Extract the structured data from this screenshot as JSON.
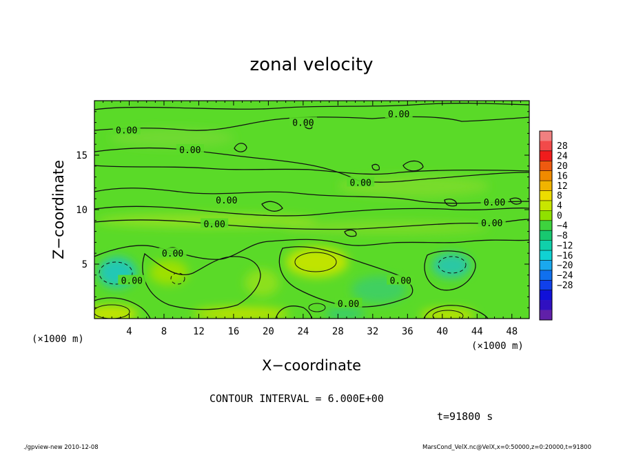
{
  "chart_data": {
    "type": "heatmap",
    "title": "zonal velocity",
    "xlabel": "X−coordinate",
    "ylabel": "Z−coordinate",
    "x_unit_label": "(×1000 m)",
    "y_unit_label": "(×1000 m)",
    "xlim": [
      0,
      50
    ],
    "ylim": [
      0,
      20
    ],
    "x_ticks": [
      "4",
      "8",
      "12",
      "16",
      "20",
      "24",
      "28",
      "32",
      "36",
      "40",
      "44",
      "48"
    ],
    "x_tick_values": [
      4,
      8,
      12,
      16,
      20,
      24,
      28,
      32,
      36,
      40,
      44,
      48
    ],
    "y_ticks": [
      "5",
      "10",
      "15"
    ],
    "y_tick_values": [
      5,
      10,
      15
    ],
    "contour_interval_text": "CONTOUR INTERVAL = 6.000E+00",
    "time_text": "t=91800 s",
    "contour_labels": [
      {
        "text": "0.00",
        "x": 3.7,
        "y": 17.3
      },
      {
        "text": "0.00",
        "x": 11.0,
        "y": 15.5
      },
      {
        "text": "0.00",
        "x": 24.0,
        "y": 18.0
      },
      {
        "text": "0.00",
        "x": 35.0,
        "y": 18.8
      },
      {
        "text": "0.00",
        "x": 30.6,
        "y": 12.5
      },
      {
        "text": "0.00",
        "x": 15.2,
        "y": 10.9
      },
      {
        "text": "0.00",
        "x": 13.8,
        "y": 8.7
      },
      {
        "text": "0.00",
        "x": 46.0,
        "y": 10.7
      },
      {
        "text": "0.00",
        "x": 45.7,
        "y": 8.8
      },
      {
        "text": "0.00",
        "x": 9.0,
        "y": 6.0
      },
      {
        "text": "0.00",
        "x": 4.3,
        "y": 3.5
      },
      {
        "text": "0.00",
        "x": 35.2,
        "y": 3.5
      },
      {
        "text": "0.00",
        "x": 29.2,
        "y": 1.4
      }
    ],
    "colorbar": {
      "labels": [
        "28",
        "24",
        "20",
        "16",
        "12",
        "8",
        "4",
        "0",
        "−4",
        "−8",
        "−12",
        "−16",
        "−20",
        "−24",
        "−28"
      ],
      "colors": [
        "#f08080",
        "#f24a4a",
        "#f01c1c",
        "#ee5a10",
        "#f08a00",
        "#f0b400",
        "#ecdc00",
        "#c8e600",
        "#90e000",
        "#3ed23e",
        "#18c870",
        "#10d0aa",
        "#10d2d2",
        "#1aa8ee",
        "#1070ee",
        "#1040ea",
        "#1010d8",
        "#3010c0",
        "#6020a8"
      ]
    }
  },
  "footer": {
    "left": "./gpview-new   2010-12-08",
    "right": "MarsCond_VelX.nc@VelX,x=0:50000,z=0:20000,t=91800"
  }
}
